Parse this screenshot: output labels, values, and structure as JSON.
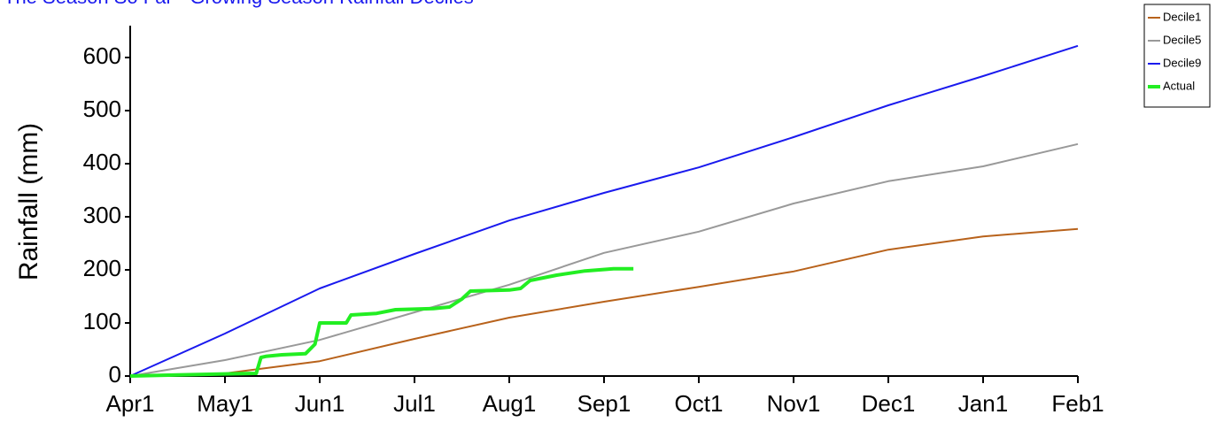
{
  "chart_data": {
    "type": "line",
    "title": "The Season So Far - Growing Season Rainfall Deciles",
    "y_label": "Rainfall (mm)",
    "xlim": [
      0,
      10
    ],
    "xticks": [
      {
        "value": 0,
        "label": "Apr1"
      },
      {
        "value": 1,
        "label": "May1"
      },
      {
        "value": 2,
        "label": "Jun1"
      },
      {
        "value": 3,
        "label": "Jul1"
      },
      {
        "value": 4,
        "label": "Aug1"
      },
      {
        "value": 5,
        "label": "Sep1"
      },
      {
        "value": 6,
        "label": "Oct1"
      },
      {
        "value": 7,
        "label": "Nov1"
      },
      {
        "value": 8,
        "label": "Dec1"
      },
      {
        "value": 9,
        "label": "Jan1"
      },
      {
        "value": 10,
        "label": "Feb1"
      }
    ],
    "ylim": [
      0,
      660
    ],
    "yticks": [
      0,
      100,
      200,
      300,
      400,
      500,
      600
    ],
    "grid": false,
    "legend": "top-right",
    "series": [
      {
        "name": "Decile1",
        "color": "#b8621b",
        "width": 2,
        "x": [
          0,
          1,
          2,
          3,
          4,
          5,
          6,
          7,
          8,
          9,
          10
        ],
        "values": [
          0,
          5,
          28,
          70,
          110,
          140,
          168,
          197,
          238,
          263,
          277
        ]
      },
      {
        "name": "Decile5",
        "color": "#999999",
        "width": 2,
        "x": [
          0,
          1,
          2,
          3,
          4,
          5,
          6,
          7,
          8,
          9,
          10
        ],
        "values": [
          0,
          30,
          68,
          120,
          172,
          232,
          272,
          325,
          367,
          395,
          437
        ]
      },
      {
        "name": "Decile9",
        "color": "#1a1aee",
        "width": 2,
        "x": [
          0,
          1,
          2,
          3,
          4,
          5,
          6,
          7,
          8,
          9,
          10
        ],
        "values": [
          0,
          80,
          165,
          230,
          293,
          345,
          393,
          450,
          510,
          565,
          622
        ]
      },
      {
        "name": "Actual",
        "color": "#22ee22",
        "width": 4,
        "x": [
          0,
          0.5,
          1.0,
          1.33,
          1.38,
          1.43,
          1.6,
          1.85,
          1.95,
          2.0,
          2.28,
          2.33,
          2.6,
          2.8,
          3.2,
          3.37,
          3.5,
          3.59,
          4.0,
          4.12,
          4.22,
          4.5,
          4.8,
          5.1,
          5.31
        ],
        "values": [
          0,
          2,
          4,
          5,
          35,
          37,
          40,
          42,
          60,
          100,
          100,
          115,
          118,
          125,
          127,
          130,
          145,
          160,
          162,
          165,
          180,
          190,
          198,
          202,
          202
        ]
      }
    ]
  }
}
